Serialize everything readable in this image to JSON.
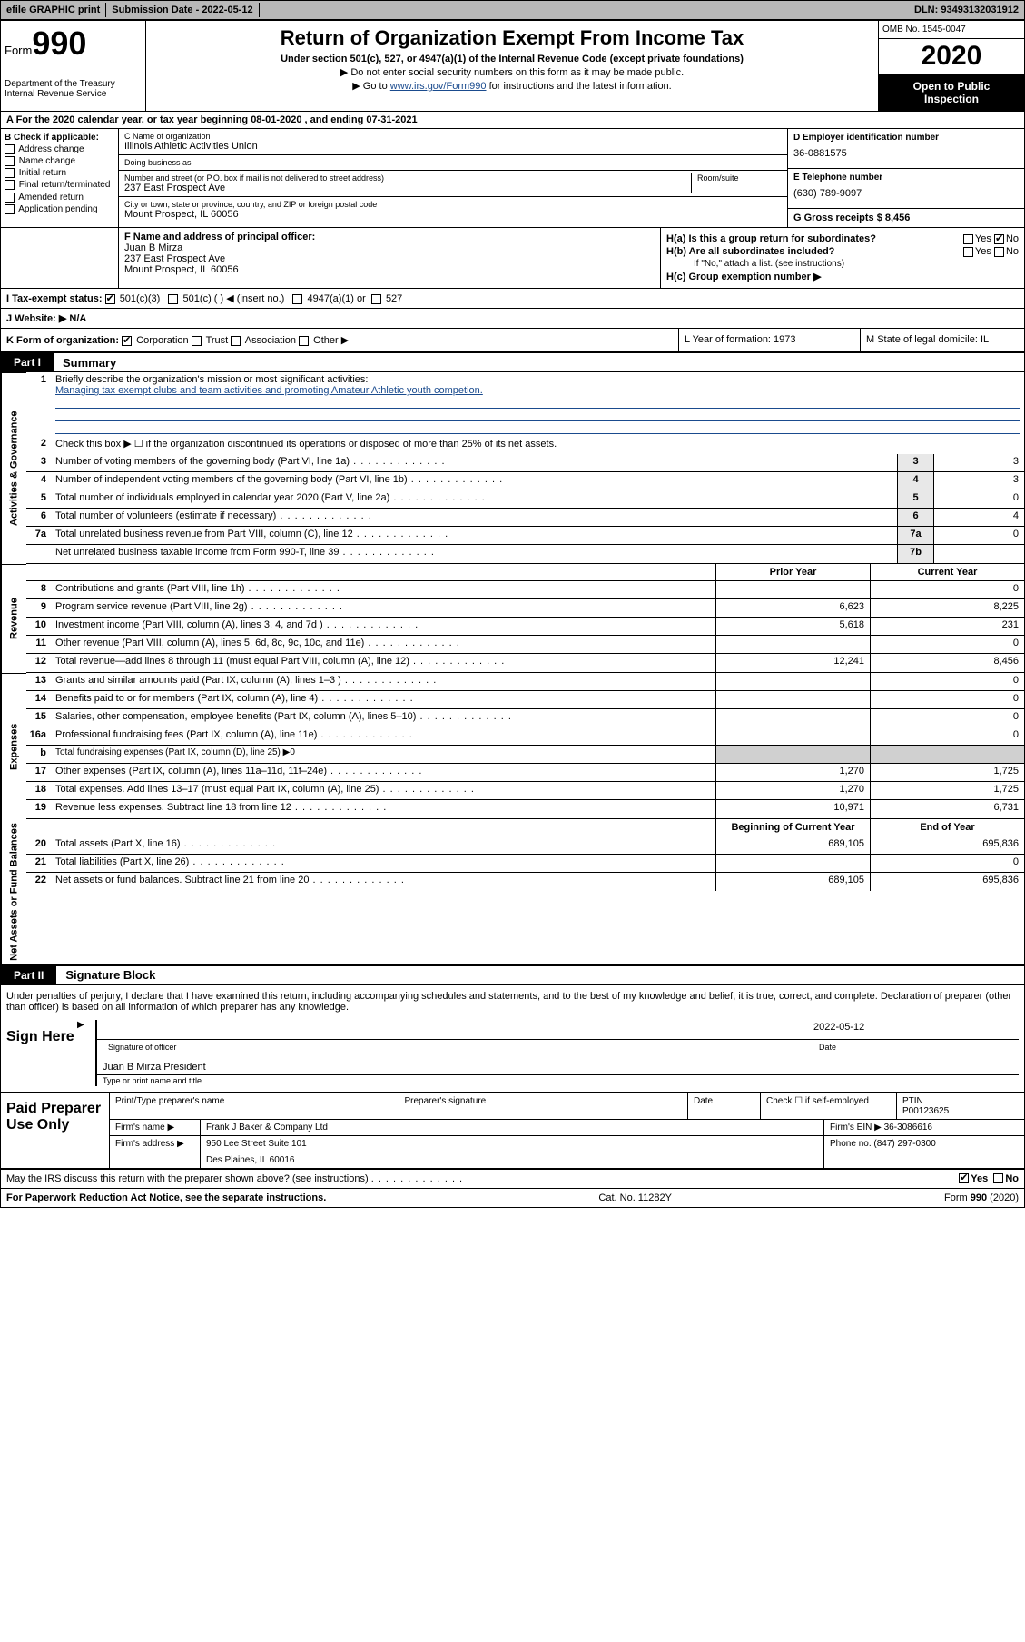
{
  "topbar": {
    "efile": "efile GRAPHIC print",
    "submission_label": "Submission Date - 2022-05-12",
    "dln": "DLN: 93493132031912"
  },
  "header": {
    "form_label": "Form",
    "form_number": "990",
    "dept": "Department of the Treasury",
    "irs": "Internal Revenue Service",
    "title": "Return of Organization Exempt From Income Tax",
    "subtitle": "Under section 501(c), 527, or 4947(a)(1) of the Internal Revenue Code (except private foundations)",
    "instr1": "▶ Do not enter social security numbers on this form as it may be made public.",
    "instr2_pre": "▶ Go to ",
    "instr2_link": "www.irs.gov/Form990",
    "instr2_post": " for instructions and the latest information.",
    "omb": "OMB No. 1545-0047",
    "year": "2020",
    "inspect1": "Open to Public",
    "inspect2": "Inspection"
  },
  "row_a": "A For the 2020 calendar year, or tax year beginning 08-01-2020   , and ending 07-31-2021",
  "section_b": {
    "label": "B Check if applicable:",
    "items": [
      "Address change",
      "Name change",
      "Initial return",
      "Final return/terminated",
      "Amended return",
      "Application pending"
    ]
  },
  "section_c": {
    "name_lbl": "C Name of organization",
    "name": "Illinois Athletic Activities Union",
    "dba_lbl": "Doing business as",
    "dba": "",
    "addr_lbl": "Number and street (or P.O. box if mail is not delivered to street address)",
    "room_lbl": "Room/suite",
    "addr": "237 East Prospect Ave",
    "city_lbl": "City or town, state or province, country, and ZIP or foreign postal code",
    "city": "Mount Prospect, IL  60056"
  },
  "section_d": {
    "ein_lbl": "D Employer identification number",
    "ein": "36-0881575",
    "tel_lbl": "E Telephone number",
    "tel": "(630) 789-9097",
    "gross_lbl": "G Gross receipts $ 8,456"
  },
  "section_f": {
    "lbl": "F Name and address of principal officer:",
    "name": "Juan B Mirza",
    "addr1": "237 East Prospect Ave",
    "addr2": "Mount Prospect, IL  60056"
  },
  "section_h": {
    "ha": "H(a)  Is this a group return for subordinates?",
    "hb": "H(b)  Are all subordinates included?",
    "hb_note": "If \"No,\" attach a list. (see instructions)",
    "hc": "H(c)  Group exemption number ▶",
    "yes": "Yes",
    "no": "No"
  },
  "row_i": {
    "lbl": "I   Tax-exempt status:",
    "opt1": "501(c)(3)",
    "opt2": "501(c) (  ) ◀ (insert no.)",
    "opt3": "4947(a)(1) or",
    "opt4": "527"
  },
  "row_j": "J   Website: ▶  N/A",
  "row_k": {
    "k": "K Form of organization:",
    "opts": [
      "Corporation",
      "Trust",
      "Association",
      "Other ▶"
    ],
    "l": "L Year of formation: 1973",
    "m": "M State of legal domicile: IL"
  },
  "part1": {
    "tag": "Part I",
    "title": "Summary"
  },
  "governance": {
    "label": "Activities & Governance",
    "q1_lbl": "Briefly describe the organization's mission or most significant activities:",
    "q1_txt": "Managing tax exempt clubs and team activities and promoting Amateur Athletic youth competion.",
    "q2": "Check this box ▶ ☐  if the organization discontinued its operations or disposed of more than 25% of its net assets.",
    "q3": "Number of voting members of the governing body (Part VI, line 1a)",
    "q3v": "3",
    "q4": "Number of independent voting members of the governing body (Part VI, line 1b)",
    "q4v": "3",
    "q5": "Total number of individuals employed in calendar year 2020 (Part V, line 2a)",
    "q5v": "0",
    "q6": "Total number of volunteers (estimate if necessary)",
    "q6v": "4",
    "q7a": "Total unrelated business revenue from Part VIII, column (C), line 12",
    "q7av": "0",
    "q7b": "Net unrelated business taxable income from Form 990-T, line 39",
    "q7bv": ""
  },
  "fin_hdr": {
    "py": "Prior Year",
    "cy": "Current Year"
  },
  "revenue": {
    "label": "Revenue",
    "rows": [
      {
        "n": "8",
        "t": "Contributions and grants (Part VIII, line 1h)",
        "py": "",
        "cy": "0"
      },
      {
        "n": "9",
        "t": "Program service revenue (Part VIII, line 2g)",
        "py": "6,623",
        "cy": "8,225"
      },
      {
        "n": "10",
        "t": "Investment income (Part VIII, column (A), lines 3, 4, and 7d )",
        "py": "5,618",
        "cy": "231"
      },
      {
        "n": "11",
        "t": "Other revenue (Part VIII, column (A), lines 5, 6d, 8c, 9c, 10c, and 11e)",
        "py": "",
        "cy": "0"
      },
      {
        "n": "12",
        "t": "Total revenue—add lines 8 through 11 (must equal Part VIII, column (A), line 12)",
        "py": "12,241",
        "cy": "8,456"
      }
    ]
  },
  "expenses": {
    "label": "Expenses",
    "rows": [
      {
        "n": "13",
        "t": "Grants and similar amounts paid (Part IX, column (A), lines 1–3 )",
        "py": "",
        "cy": "0"
      },
      {
        "n": "14",
        "t": "Benefits paid to or for members (Part IX, column (A), line 4)",
        "py": "",
        "cy": "0"
      },
      {
        "n": "15",
        "t": "Salaries, other compensation, employee benefits (Part IX, column (A), lines 5–10)",
        "py": "",
        "cy": "0"
      },
      {
        "n": "16a",
        "t": "Professional fundraising fees (Part IX, column (A), line 11e)",
        "py": "",
        "cy": "0"
      },
      {
        "n": "b",
        "t": "Total fundraising expenses (Part IX, column (D), line 25) ▶0",
        "py": "SHADE",
        "cy": "SHADE"
      },
      {
        "n": "17",
        "t": "Other expenses (Part IX, column (A), lines 11a–11d, 11f–24e)",
        "py": "1,270",
        "cy": "1,725"
      },
      {
        "n": "18",
        "t": "Total expenses. Add lines 13–17 (must equal Part IX, column (A), line 25)",
        "py": "1,270",
        "cy": "1,725"
      },
      {
        "n": "19",
        "t": "Revenue less expenses. Subtract line 18 from line 12",
        "py": "10,971",
        "cy": "6,731"
      }
    ]
  },
  "net_hdr": {
    "py": "Beginning of Current Year",
    "cy": "End of Year"
  },
  "netassets": {
    "label": "Net Assets or Fund Balances",
    "rows": [
      {
        "n": "20",
        "t": "Total assets (Part X, line 16)",
        "py": "689,105",
        "cy": "695,836"
      },
      {
        "n": "21",
        "t": "Total liabilities (Part X, line 26)",
        "py": "",
        "cy": "0"
      },
      {
        "n": "22",
        "t": "Net assets or fund balances. Subtract line 21 from line 20",
        "py": "689,105",
        "cy": "695,836"
      }
    ]
  },
  "part2": {
    "tag": "Part II",
    "title": "Signature Block"
  },
  "sig": {
    "penalty": "Under penalties of perjury, I declare that I have examined this return, including accompanying schedules and statements, and to the best of my knowledge and belief, it is true, correct, and complete. Declaration of preparer (other than officer) is based on all information of which preparer has any knowledge.",
    "sign_here": "Sign Here",
    "sig_officer_lbl": "Signature of officer",
    "date_lbl": "Date",
    "date_val": "2022-05-12",
    "name_title": "Juan B Mirza  President",
    "name_title_lbl": "Type or print name and title"
  },
  "prep": {
    "label": "Paid Preparer Use Only",
    "r1": {
      "c1": "Print/Type preparer's name",
      "c2": "Preparer's signature",
      "c3": "Date",
      "c4_pre": "Check ☐ if self-employed",
      "c5_lbl": "PTIN",
      "c5_val": "P00123625"
    },
    "r2": {
      "lbl": "Firm's name    ▶",
      "val": "Frank J Baker & Company Ltd",
      "ein_lbl": "Firm's EIN ▶",
      "ein_val": "36-3086616"
    },
    "r3": {
      "lbl": "Firm's address ▶",
      "val1": "950 Lee Street Suite 101",
      "val2": "Des Plaines, IL  60016",
      "ph_lbl": "Phone no.",
      "ph_val": "(847) 297-0300"
    }
  },
  "discuss": {
    "txt": "May the IRS discuss this return with the preparer shown above? (see instructions)",
    "yes": "Yes",
    "no": "No"
  },
  "footer": {
    "left": "For Paperwork Reduction Act Notice, see the separate instructions.",
    "mid": "Cat. No. 11282Y",
    "right": "Form 990 (2020)"
  },
  "colors": {
    "topbar_bg": "#b8b8b8",
    "link": "#1a4b8e",
    "black": "#000000",
    "shade": "#d0d0d0",
    "box_shade": "#e8e8e8"
  }
}
